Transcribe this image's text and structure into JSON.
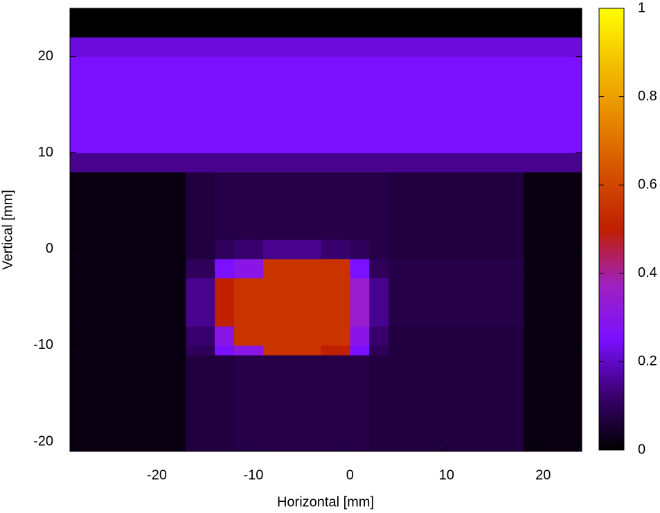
{
  "chart_data": {
    "type": "heatmap",
    "x_label": "Horizontal [mm]",
    "y_label": "Vertical [mm]",
    "xlim": [
      -29,
      24
    ],
    "ylim": [
      -21,
      25
    ],
    "xticks": [
      -20,
      -10,
      0,
      10,
      20
    ],
    "yticks": [
      -20,
      -10,
      0,
      10,
      20
    ],
    "xbins": [
      -29,
      -17,
      -14,
      -12,
      -9,
      -3,
      0,
      2,
      4,
      18,
      24
    ],
    "ybins": [
      -21,
      -11,
      -10,
      -8,
      -3,
      -1,
      1,
      8,
      10,
      20,
      22,
      25
    ],
    "z": [
      [
        0.02,
        0.07,
        0.07,
        0.08,
        0.08,
        0.08,
        0.08,
        0.07,
        0.07,
        0.02
      ],
      [
        0.02,
        0.1,
        0.25,
        0.3,
        0.55,
        0.5,
        0.25,
        0.1,
        0.07,
        0.02
      ],
      [
        0.02,
        0.12,
        0.3,
        0.55,
        0.55,
        0.55,
        0.3,
        0.12,
        0.07,
        0.02
      ],
      [
        0.02,
        0.15,
        0.5,
        0.55,
        0.55,
        0.55,
        0.35,
        0.15,
        0.08,
        0.02
      ],
      [
        0.02,
        0.1,
        0.25,
        0.3,
        0.55,
        0.55,
        0.25,
        0.1,
        0.08,
        0.02
      ],
      [
        0.02,
        0.07,
        0.1,
        0.12,
        0.15,
        0.12,
        0.1,
        0.08,
        0.07,
        0.02
      ],
      [
        0.02,
        0.07,
        0.08,
        0.08,
        0.08,
        0.08,
        0.08,
        0.08,
        0.07,
        0.02
      ],
      [
        0.15,
        0.15,
        0.15,
        0.15,
        0.15,
        0.15,
        0.15,
        0.15,
        0.15,
        0.15
      ],
      [
        0.25,
        0.25,
        0.25,
        0.25,
        0.25,
        0.25,
        0.25,
        0.25,
        0.25,
        0.25
      ],
      [
        0.22,
        0.22,
        0.22,
        0.22,
        0.22,
        0.22,
        0.22,
        0.22,
        0.22,
        0.22
      ],
      [
        0,
        0,
        0,
        0,
        0,
        0,
        0,
        0,
        0,
        0
      ]
    ],
    "colorbar_lim": [
      0,
      1
    ],
    "colorbar_ticks": [
      0,
      0.2,
      0.4,
      0.6,
      0.8,
      1
    ],
    "colormap": [
      "#000000",
      "#3a0070",
      "#7a10ff",
      "#a020c0",
      "#c02000",
      "#d45000",
      "#e88800",
      "#f5c000",
      "#ffff00"
    ]
  }
}
